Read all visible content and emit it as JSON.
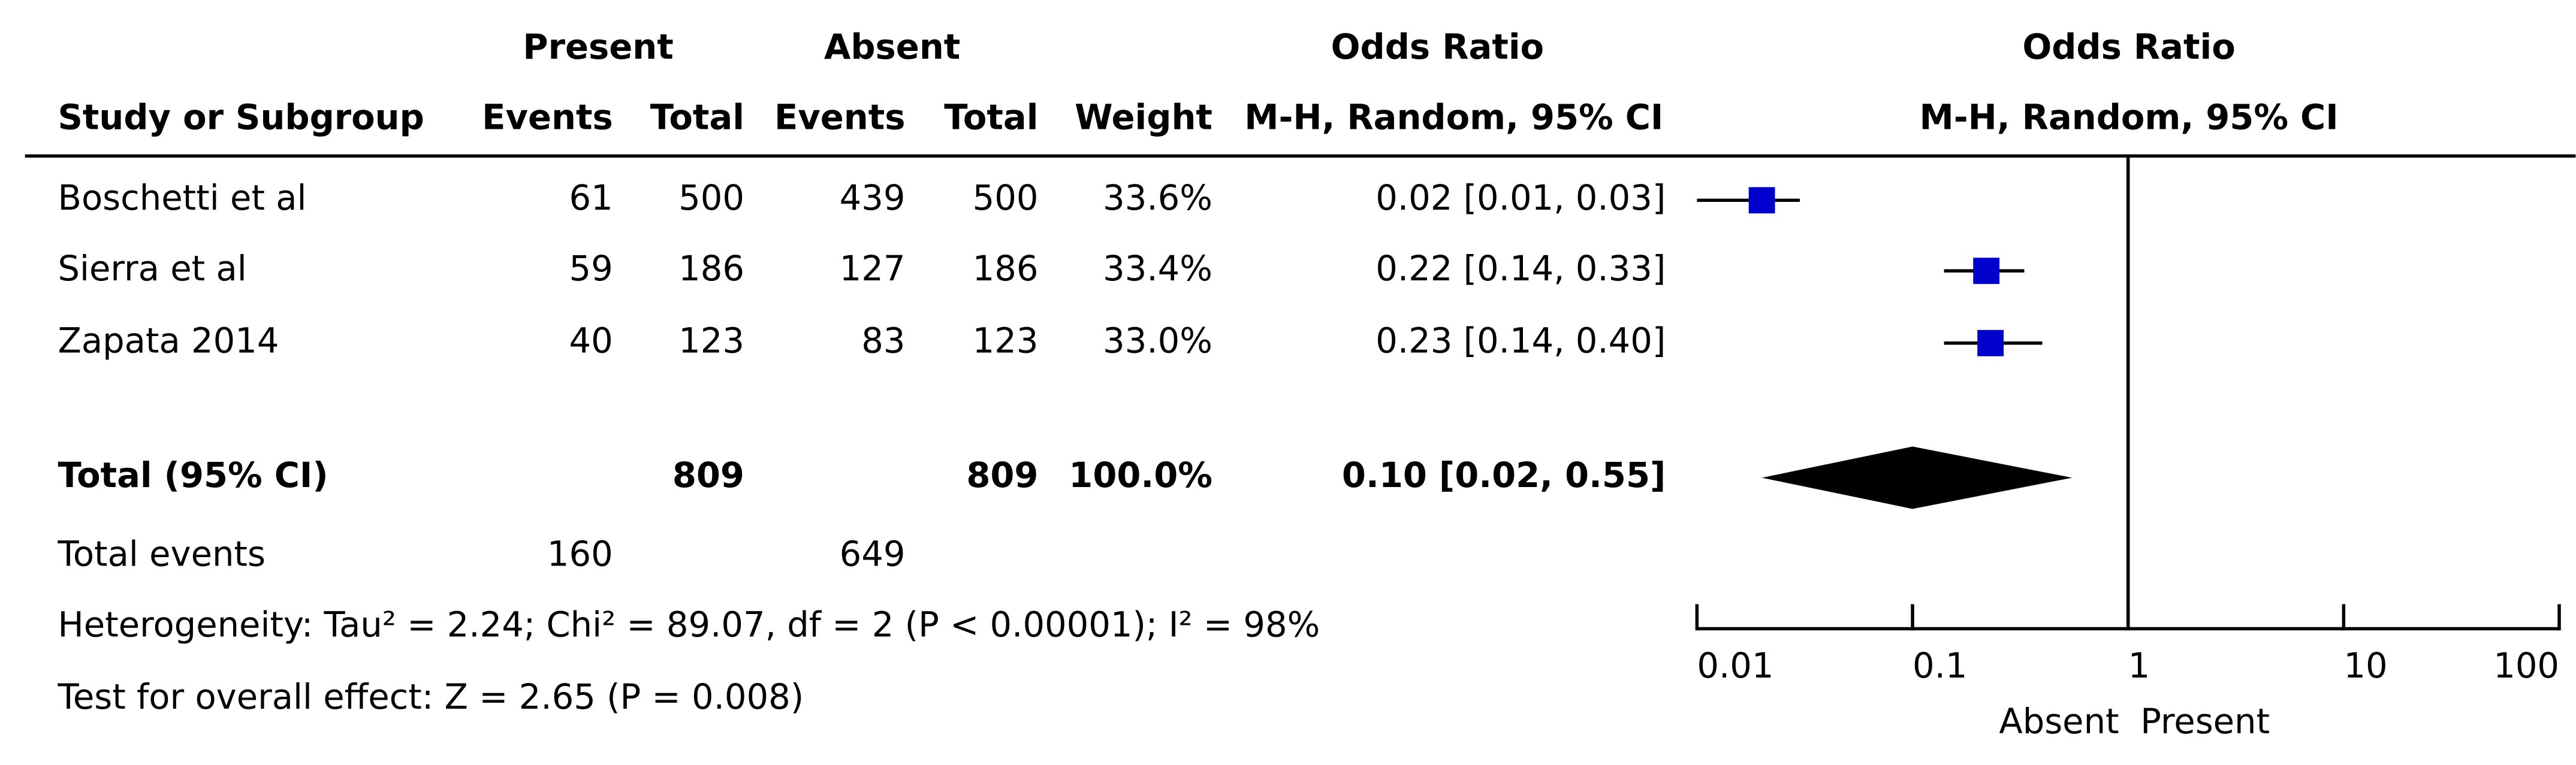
{
  "chart_data": {
    "type": "forest",
    "group_present": "Present",
    "group_absent": "Absent",
    "table_title": "Odds Ratio",
    "table_subtitle": "M-H, Random, 95% CI",
    "plot_title": "Odds Ratio",
    "plot_subtitle": "M-H, Random, 95% CI",
    "columns": [
      "Study or Subgroup",
      "Events",
      "Total",
      "Events",
      "Total",
      "Weight"
    ],
    "studies": [
      {
        "name": "Boschetti et al",
        "present_events": 61,
        "present_total": 500,
        "absent_events": 439,
        "absent_total": 500,
        "weight": "33.6%",
        "or": 0.02,
        "ci": [
          0.01,
          0.03
        ],
        "or_label": "0.02 [0.01, 0.03]"
      },
      {
        "name": "Sierra et al",
        "present_events": 59,
        "present_total": 186,
        "absent_events": 127,
        "absent_total": 186,
        "weight": "33.4%",
        "or": 0.22,
        "ci": [
          0.14,
          0.33
        ],
        "or_label": "0.22 [0.14, 0.33]"
      },
      {
        "name": "Zapata 2014",
        "present_events": 40,
        "present_total": 123,
        "absent_events": 83,
        "absent_total": 123,
        "weight": "33.0%",
        "or": 0.23,
        "ci": [
          0.14,
          0.4
        ],
        "or_label": "0.23 [0.14, 0.40]"
      }
    ],
    "total": {
      "name": "Total (95% CI)",
      "present_total": 809,
      "absent_total": 809,
      "weight": "100.0%",
      "or": 0.1,
      "ci": [
        0.02,
        0.55
      ],
      "or_label": "0.10 [0.02, 0.55]"
    },
    "total_events": {
      "name": "Total events",
      "present": 160,
      "absent": 649
    },
    "heterogeneity": "Heterogeneity: Tau² = 2.24; Chi² = 89.07, df = 2 (P < 0.00001); I² = 98%",
    "overall_effect": "Test for overall effect: Z = 2.65 (P = 0.008)",
    "log_scale": true,
    "xlim": [
      0.01,
      100
    ],
    "xticks": [
      0.01,
      0.1,
      1,
      10,
      100
    ],
    "reference": 1,
    "favours_left": "Absent",
    "favours_right": "Present",
    "color": "#0000cc"
  }
}
